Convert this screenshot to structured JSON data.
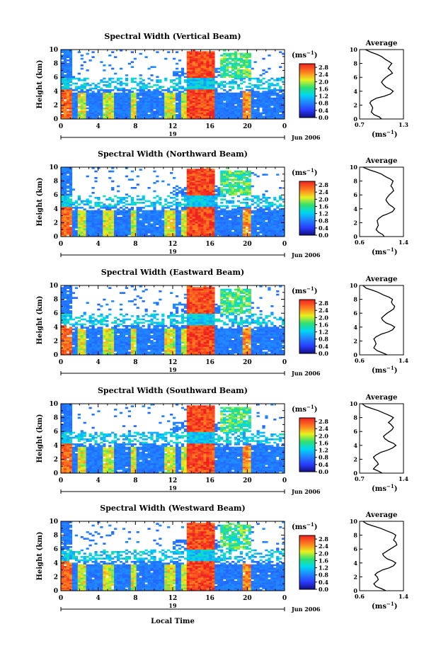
{
  "figure": {
    "x_axis_label": "Local Time",
    "y_axis_label": "Height (km)",
    "colorbar_unit": "(ms",
    "unit_exponent": "−1",
    "date_day": "19",
    "date_month": "Jun 2006",
    "avg_title": "Average",
    "avg_xunit": "(ms",
    "colorbar_ticks": [
      "2.8",
      "2.4",
      "2.0",
      "1.6",
      "1.2",
      "0.8",
      "0.4",
      "0.0"
    ],
    "time_ticks": [
      "0",
      "4",
      "8",
      "12",
      "16",
      "20",
      "0"
    ],
    "height_ticks": [
      "0",
      "2",
      "4",
      "6",
      "8",
      "10"
    ]
  },
  "chart_data": [
    {
      "type": "heatmap",
      "title": "Spectral Width (Vertical Beam)",
      "xlabel": "",
      "ylabel": "Height (km)",
      "xlim": [
        0,
        24
      ],
      "ylim": [
        0,
        10
      ],
      "colorbar": {
        "label": "(ms-1)",
        "range": [
          0,
          3.0
        ]
      },
      "profile": {
        "title": "Average",
        "xlabel": "(ms-1)",
        "xlim": [
          0.7,
          1.3
        ],
        "xtick_labels": [
          "0.7",
          "1.3"
        ],
        "x": [
          1.0,
          0.97,
          0.9,
          0.86,
          0.87,
          0.88,
          0.86,
          0.84,
          0.86,
          0.93,
          1.04,
          1.12,
          1.16,
          1.12,
          1.06,
          1.02,
          1.0,
          1.02,
          1.06,
          1.1,
          1.15,
          1.12,
          1.09,
          1.11,
          1.14,
          1.1,
          1.05,
          1.0,
          0.94,
          0.86,
          0.78
        ],
        "y": [
          0.0,
          0.3,
          0.6,
          1.0,
          1.3,
          1.6,
          2.0,
          2.3,
          2.6,
          3.0,
          3.3,
          3.6,
          4.0,
          4.3,
          4.6,
          5.0,
          5.3,
          5.6,
          6.0,
          6.3,
          6.6,
          7.0,
          7.3,
          7.6,
          8.0,
          8.3,
          8.6,
          9.0,
          9.3,
          9.6,
          10.0
        ]
      }
    },
    {
      "type": "heatmap",
      "title": "Spectral Width (Northward Beam)",
      "xlabel": "",
      "ylabel": "Height (km)",
      "xlim": [
        0,
        24
      ],
      "ylim": [
        0,
        10
      ],
      "colorbar": {
        "label": "(ms-1)",
        "range": [
          0,
          3.0
        ]
      },
      "profile": {
        "title": "Average",
        "xlabel": "(ms-1)",
        "xlim": [
          0.6,
          1.4
        ],
        "xtick_labels": [
          "0.6",
          "1.4"
        ],
        "x": [
          1.05,
          1.02,
          0.95,
          0.9,
          0.92,
          0.94,
          0.93,
          0.92,
          0.95,
          1.02,
          1.12,
          1.2,
          1.24,
          1.2,
          1.14,
          1.1,
          1.08,
          1.1,
          1.14,
          1.18,
          1.22,
          1.2,
          1.17,
          1.19,
          1.21,
          1.16,
          1.08,
          1.0,
          0.9,
          0.78,
          0.66
        ],
        "y": [
          0.0,
          0.3,
          0.6,
          1.0,
          1.3,
          1.6,
          2.0,
          2.3,
          2.6,
          3.0,
          3.3,
          3.6,
          4.0,
          4.3,
          4.6,
          5.0,
          5.3,
          5.6,
          6.0,
          6.3,
          6.6,
          7.0,
          7.3,
          7.6,
          8.0,
          8.3,
          8.6,
          9.0,
          9.3,
          9.6,
          10.0
        ]
      }
    },
    {
      "type": "heatmap",
      "title": "Spectral Width (Eastward Beam)",
      "xlabel": "",
      "ylabel": "Height (km)",
      "xlim": [
        0,
        24
      ],
      "ylim": [
        0,
        10
      ],
      "colorbar": {
        "label": "(ms-1)",
        "range": [
          0,
          3.0
        ]
      },
      "profile": {
        "title": "Average",
        "xlabel": "(ms-1)",
        "xlim": [
          0.6,
          1.4
        ],
        "xtick_labels": [
          "0.6",
          "1.4"
        ],
        "x": [
          1.1,
          1.02,
          0.92,
          0.86,
          0.88,
          0.9,
          0.88,
          0.86,
          0.9,
          1.0,
          1.12,
          1.2,
          1.24,
          1.18,
          1.08,
          1.02,
          1.0,
          1.04,
          1.1,
          1.16,
          1.22,
          1.24,
          1.2,
          1.18,
          1.2,
          1.14,
          1.04,
          0.94,
          0.84,
          0.72,
          0.66
        ],
        "y": [
          0.0,
          0.3,
          0.6,
          1.0,
          1.3,
          1.6,
          2.0,
          2.3,
          2.6,
          3.0,
          3.3,
          3.6,
          4.0,
          4.3,
          4.6,
          5.0,
          5.3,
          5.6,
          6.0,
          6.3,
          6.6,
          7.0,
          7.3,
          7.6,
          8.0,
          8.3,
          8.6,
          9.0,
          9.3,
          9.6,
          10.0
        ]
      }
    },
    {
      "type": "heatmap",
      "title": "Spectral Width (Southward Beam)",
      "xlabel": "",
      "ylabel": "Height (km)",
      "xlim": [
        0,
        24
      ],
      "ylim": [
        0,
        10
      ],
      "colorbar": {
        "label": "(ms-1)",
        "range": [
          0,
          3.0
        ]
      },
      "profile": {
        "title": "Average",
        "xlabel": "(ms-1)",
        "xlim": [
          0.7,
          1.4
        ],
        "xtick_labels": [
          "0.7",
          "1.4"
        ],
        "x": [
          1.06,
          1.0,
          0.92,
          0.96,
          1.0,
          0.98,
          0.94,
          0.92,
          0.96,
          1.04,
          1.14,
          1.22,
          1.28,
          1.24,
          1.16,
          1.1,
          1.08,
          1.12,
          1.18,
          1.22,
          1.24,
          1.2,
          1.16,
          1.2,
          1.24,
          1.18,
          1.1,
          1.0,
          0.9,
          0.8,
          0.74
        ],
        "y": [
          0.0,
          0.3,
          0.6,
          1.0,
          1.3,
          1.6,
          2.0,
          2.3,
          2.6,
          3.0,
          3.3,
          3.6,
          4.0,
          4.3,
          4.6,
          5.0,
          5.3,
          5.6,
          6.0,
          6.3,
          6.6,
          7.0,
          7.3,
          7.6,
          8.0,
          8.3,
          8.6,
          9.0,
          9.3,
          9.6,
          10.0
        ]
      }
    },
    {
      "type": "heatmap",
      "title": "Spectral Width (Westward Beam)",
      "xlabel": "Local Time",
      "ylabel": "Height (km)",
      "xlim": [
        0,
        24
      ],
      "ylim": [
        0,
        10
      ],
      "colorbar": {
        "label": "(ms-1)",
        "range": [
          0,
          3.0
        ]
      },
      "profile": {
        "title": "Average",
        "xlabel": "(ms-1)",
        "xlim": [
          0.6,
          1.4
        ],
        "xtick_labels": [
          "0.6",
          "1.4"
        ],
        "x": [
          1.08,
          1.0,
          0.9,
          0.86,
          0.9,
          0.94,
          0.92,
          0.88,
          0.92,
          1.02,
          1.14,
          1.22,
          1.26,
          1.2,
          1.1,
          1.04,
          1.02,
          1.08,
          1.16,
          1.22,
          1.28,
          1.26,
          1.22,
          1.24,
          1.26,
          1.2,
          1.1,
          0.98,
          0.86,
          0.74,
          0.66
        ],
        "y": [
          0.0,
          0.3,
          0.6,
          1.0,
          1.3,
          1.6,
          2.0,
          2.3,
          2.6,
          3.0,
          3.3,
          3.6,
          4.0,
          4.3,
          4.6,
          5.0,
          5.3,
          5.6,
          6.0,
          6.3,
          6.6,
          7.0,
          7.3,
          7.6,
          8.0,
          8.3,
          8.6,
          9.0,
          9.3,
          9.6,
          10.0
        ]
      }
    }
  ]
}
